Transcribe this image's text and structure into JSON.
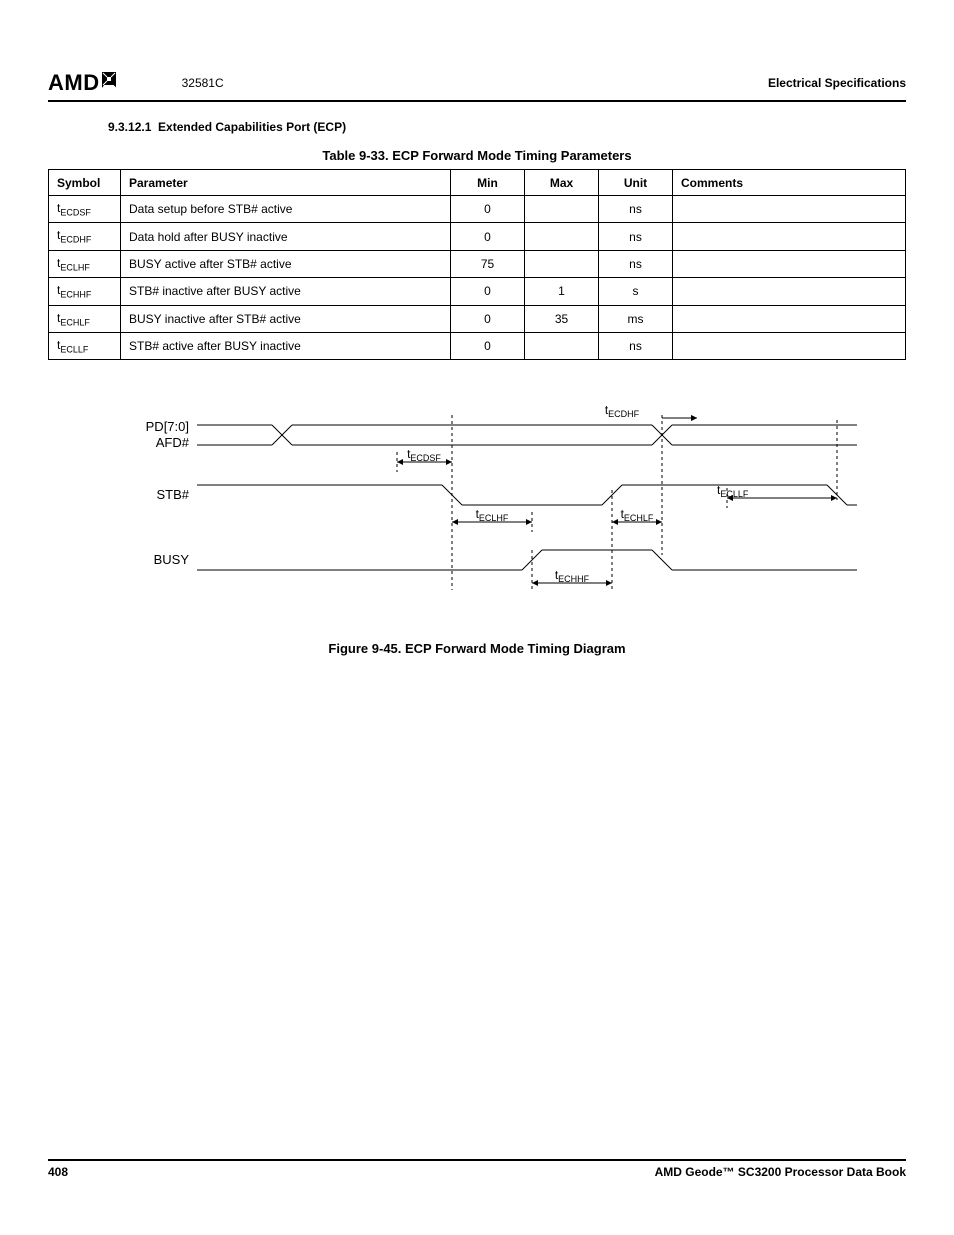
{
  "header": {
    "logo": "AMD",
    "docnum": "32581C",
    "right": "Electrical Specifications"
  },
  "section": {
    "number": "9.3.12.1",
    "title": "Extended Capabilities Port (ECP)"
  },
  "table": {
    "caption": "Table 9-33.  ECP Forward Mode Timing Parameters",
    "columns": [
      "Symbol",
      "Parameter",
      "Min",
      "Max",
      "Unit",
      "Comments"
    ],
    "rows": [
      {
        "sym_pre": "t",
        "sym_sub": "ECDSF",
        "param": "Data setup before STB# active",
        "min": "0",
        "max": "",
        "unit": "ns",
        "comments": ""
      },
      {
        "sym_pre": "t",
        "sym_sub": "ECDHF",
        "param": "Data hold after BUSY inactive",
        "min": "0",
        "max": "",
        "unit": "ns",
        "comments": ""
      },
      {
        "sym_pre": "t",
        "sym_sub": "ECLHF",
        "param": "BUSY active after STB# active",
        "min": "75",
        "max": "",
        "unit": "ns",
        "comments": ""
      },
      {
        "sym_pre": "t",
        "sym_sub": "ECHHF",
        "param": "STB# inactive after BUSY active",
        "min": "0",
        "max": "1",
        "unit": "s",
        "comments": ""
      },
      {
        "sym_pre": "t",
        "sym_sub": "ECHLF",
        "param": "BUSY inactive after STB# active",
        "min": "0",
        "max": "35",
        "unit": "ms",
        "comments": ""
      },
      {
        "sym_pre": "t",
        "sym_sub": "ECLLF",
        "param": "STB# active after BUSY inactive",
        "min": "0",
        "max": "",
        "unit": "ns",
        "comments": ""
      }
    ]
  },
  "figure": {
    "caption": "Figure 9-45.  ECP Forward Mode Timing Diagram",
    "signals": {
      "pd": {
        "label1": "PD[7:0]",
        "label2": "AFD#"
      },
      "stb": {
        "label": "STB#"
      },
      "busy": {
        "label": "BUSY"
      }
    },
    "annots": {
      "ecdhf": {
        "pre": "t",
        "sub": "ECDHF"
      },
      "ecdsf": {
        "pre": "t",
        "sub": "ECDSF"
      },
      "ecllf": {
        "pre": "t",
        "sub": "ECLLF"
      },
      "eclhf": {
        "pre": "t",
        "sub": "ECLHF"
      },
      "echlf": {
        "pre": "t",
        "sub": "ECHLF"
      },
      "echhf": {
        "pre": "t",
        "sub": "ECHHF"
      }
    },
    "style": {
      "stroke": "#000000",
      "stroke_width": 1,
      "dash": "3,3"
    }
  },
  "footer": {
    "page": "408",
    "book": "AMD Geode™ SC3200 Processor Data Book"
  }
}
